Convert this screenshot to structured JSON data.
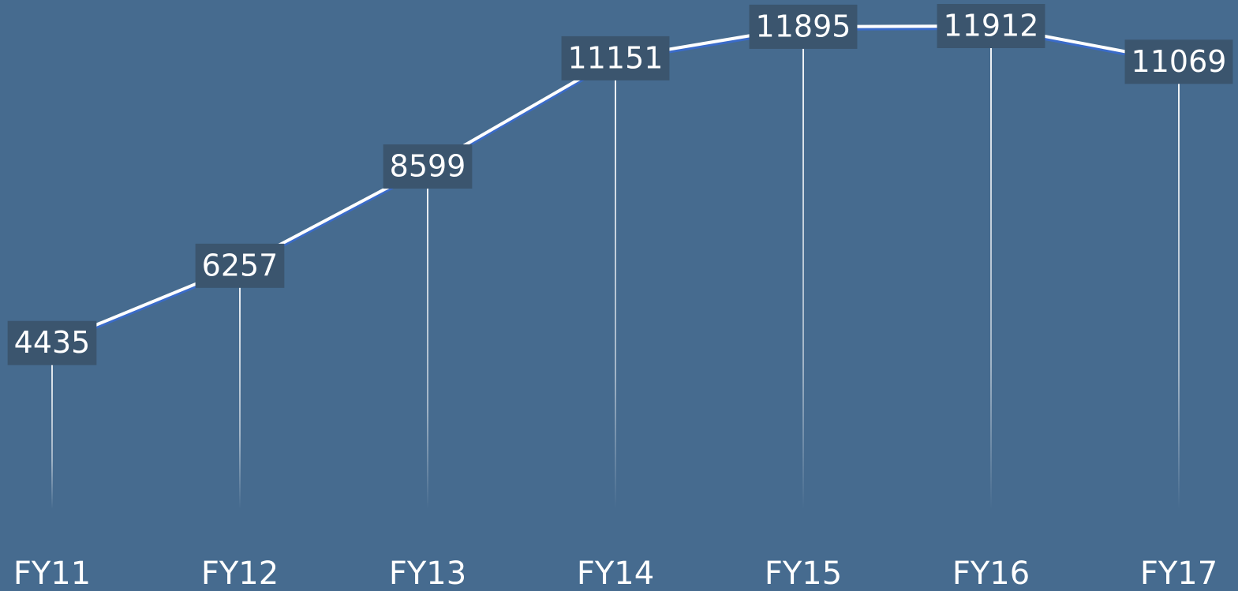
{
  "chart_data": {
    "type": "line",
    "categories": [
      "FY11",
      "FY12",
      "FY13",
      "FY14",
      "FY15",
      "FY16",
      "FY17"
    ],
    "values": [
      4435,
      6257,
      8599,
      11151,
      11895,
      11912,
      11069
    ],
    "color": "#ffffff"
  }
}
